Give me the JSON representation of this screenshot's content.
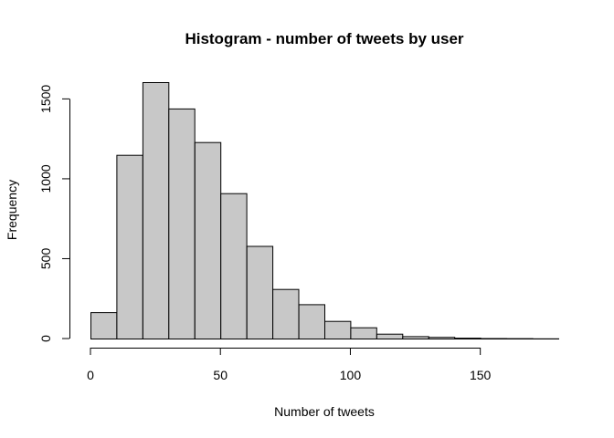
{
  "chart_data": {
    "type": "bar",
    "title": "Histogram - number of tweets by user",
    "xlabel": "Number of tweets",
    "ylabel": "Frequency",
    "bin_edges": [
      0,
      10,
      20,
      30,
      40,
      50,
      60,
      70,
      80,
      90,
      100,
      110,
      120,
      130,
      140,
      150,
      160,
      170,
      180
    ],
    "values": [
      165,
      1150,
      1605,
      1440,
      1230,
      910,
      580,
      310,
      215,
      110,
      70,
      30,
      15,
      10,
      5,
      3,
      2,
      1
    ],
    "xlim": [
      0,
      180
    ],
    "ylim": [
      0,
      1605
    ],
    "x_ticks": [
      0,
      50,
      100,
      150
    ],
    "x_tick_labels": [
      "0",
      "50",
      "100",
      "150"
    ],
    "y_ticks": [
      0,
      500,
      1000,
      1500
    ],
    "y_tick_labels": [
      "0",
      "500",
      "1000",
      "1500"
    ],
    "grid": false,
    "bar_fill": "#c8c8c8",
    "bar_stroke": "#000000"
  }
}
